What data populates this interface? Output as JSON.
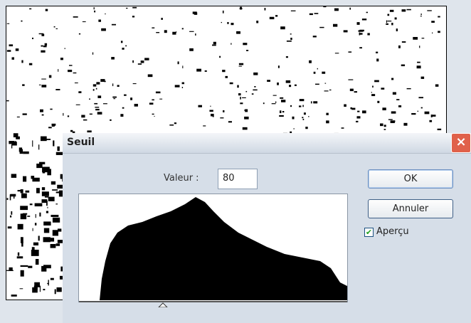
{
  "dialog": {
    "title": "Seuil",
    "value_label": "Valeur :",
    "value": "80",
    "buttons": [
      "OK",
      "Annuler"
    ],
    "preview": {
      "label": "Aperçu",
      "checked": true
    }
  }
}
